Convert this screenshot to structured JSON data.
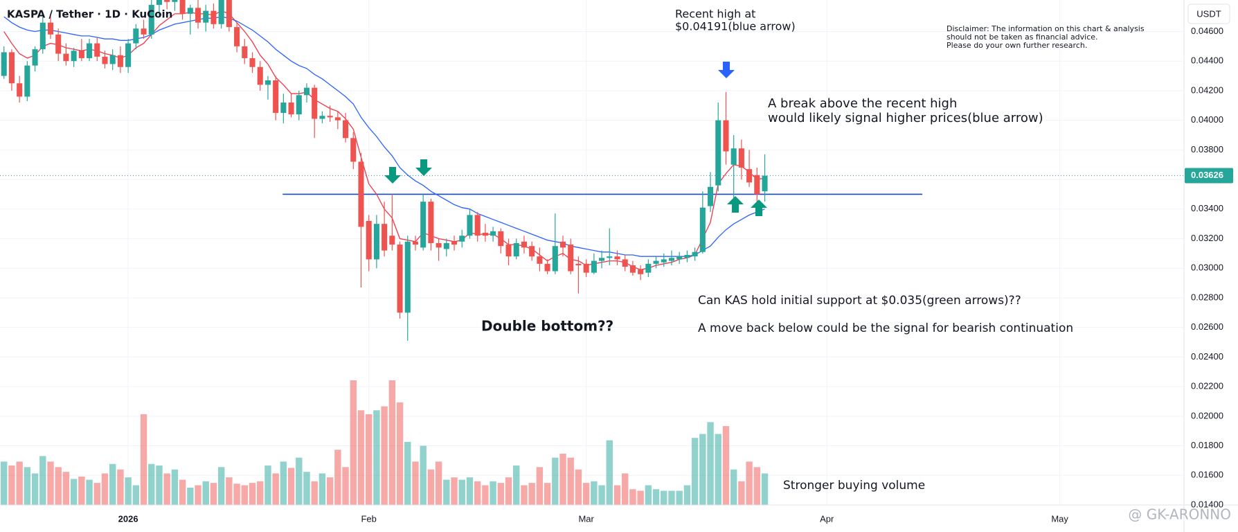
{
  "chart_data": {
    "type": "candlestick",
    "title": "KASPA / Tether · 1D · KuCoin",
    "currency": "USDT",
    "colors": {
      "up": "#26a69a",
      "down": "#ef5350"
    },
    "open": [
      0.043,
      0.0446,
      0.0425,
      0.0416,
      0.0437,
      0.0448,
      0.0466,
      0.0458,
      0.0445,
      0.044,
      0.0447,
      0.0442,
      0.0452,
      0.0443,
      0.0438,
      0.0444,
      0.0436,
      0.0452,
      0.0462,
      0.0458,
      0.0478,
      0.0486,
      0.048,
      0.0488,
      0.0472,
      0.0476,
      0.0466,
      0.0474,
      0.0465,
      0.0484,
      0.0463,
      0.045,
      0.0442,
      0.0436,
      0.0424,
      0.0427,
      0.0405,
      0.0412,
      0.0404,
      0.0417,
      0.0422,
      0.0401,
      0.0403,
      0.0402,
      0.04,
      0.0388,
      0.0372,
      0.0332,
      0.0306,
      0.033,
      0.0322,
      0.0316,
      0.027,
      0.0318,
      0.0314,
      0.0345,
      0.0317,
      0.0313,
      0.0318,
      0.0318,
      0.0322,
      0.0336,
      0.0324,
      0.0322,
      0.0325,
      0.0316,
      0.0308,
      0.0318,
      0.0315,
      0.0308,
      0.0303,
      0.0298,
      0.0318,
      0.0316,
      0.0303,
      0.0303,
      0.0297,
      0.0305,
      0.0307,
      0.0308,
      0.0306,
      0.0302,
      0.0299,
      0.0297,
      0.0303,
      0.0304,
      0.0305,
      0.0306,
      0.0307,
      0.0308,
      0.0311,
      0.0342,
      0.0356,
      0.04,
      0.037,
      0.0381,
      0.0367,
      0.0363,
      0.0352
    ],
    "high": [
      0.045,
      0.0448,
      0.043,
      0.044,
      0.045,
      0.047,
      0.0472,
      0.0462,
      0.0452,
      0.0449,
      0.0455,
      0.0455,
      0.0456,
      0.0447,
      0.0448,
      0.045,
      0.0455,
      0.0465,
      0.0468,
      0.0482,
      0.049,
      0.0495,
      0.0492,
      0.0496,
      0.0478,
      0.0482,
      0.0478,
      0.0479,
      0.0488,
      0.049,
      0.0466,
      0.0455,
      0.0446,
      0.044,
      0.043,
      0.043,
      0.0418,
      0.0418,
      0.042,
      0.0425,
      0.0424,
      0.0406,
      0.041,
      0.0406,
      0.0405,
      0.0392,
      0.0378,
      0.0336,
      0.0336,
      0.0345,
      0.035,
      0.0318,
      0.0322,
      0.0322,
      0.035,
      0.0347,
      0.032,
      0.032,
      0.0322,
      0.0326,
      0.034,
      0.0338,
      0.033,
      0.0328,
      0.0327,
      0.032,
      0.032,
      0.0322,
      0.0318,
      0.0314,
      0.0306,
      0.0337,
      0.0322,
      0.032,
      0.0308,
      0.0306,
      0.031,
      0.0312,
      0.0327,
      0.0312,
      0.0309,
      0.0305,
      0.0302,
      0.0306,
      0.0308,
      0.031,
      0.0312,
      0.0311,
      0.0312,
      0.0314,
      0.0352,
      0.0365,
      0.0412,
      0.04191,
      0.039,
      0.0387,
      0.038,
      0.0368,
      0.0377
    ],
    "low": [
      0.0428,
      0.042,
      0.0412,
      0.0413,
      0.0433,
      0.0445,
      0.0455,
      0.044,
      0.0437,
      0.0436,
      0.044,
      0.044,
      0.044,
      0.0435,
      0.0434,
      0.0432,
      0.0432,
      0.0448,
      0.0455,
      0.0455,
      0.047,
      0.0475,
      0.0474,
      0.0468,
      0.0458,
      0.0462,
      0.046,
      0.0462,
      0.0462,
      0.046,
      0.0446,
      0.0438,
      0.0432,
      0.042,
      0.0414,
      0.04,
      0.0398,
      0.0402,
      0.04,
      0.0412,
      0.0388,
      0.0398,
      0.0399,
      0.0394,
      0.0385,
      0.0367,
      0.0287,
      0.0298,
      0.03,
      0.0308,
      0.0312,
      0.0266,
      0.0251,
      0.0312,
      0.0312,
      0.0312,
      0.0305,
      0.0308,
      0.0312,
      0.0314,
      0.032,
      0.0318,
      0.0318,
      0.0318,
      0.031,
      0.0302,
      0.0306,
      0.031,
      0.0305,
      0.0298,
      0.0296,
      0.0296,
      0.0308,
      0.0296,
      0.0283,
      0.0294,
      0.0296,
      0.03,
      0.0302,
      0.0302,
      0.0298,
      0.0295,
      0.0292,
      0.0294,
      0.03,
      0.0301,
      0.0302,
      0.0303,
      0.0304,
      0.0305,
      0.031,
      0.0338,
      0.0352,
      0.037,
      0.0341,
      0.036,
      0.0355,
      0.0343,
      0.0345
    ],
    "close": [
      0.0446,
      0.0425,
      0.0416,
      0.0437,
      0.0448,
      0.0466,
      0.0458,
      0.0445,
      0.044,
      0.0447,
      0.0442,
      0.0452,
      0.0443,
      0.0438,
      0.0444,
      0.0436,
      0.0452,
      0.0462,
      0.0458,
      0.0478,
      0.0486,
      0.048,
      0.0488,
      0.0472,
      0.0476,
      0.0466,
      0.0474,
      0.0465,
      0.0484,
      0.0463,
      0.045,
      0.0442,
      0.0436,
      0.0424,
      0.0427,
      0.0405,
      0.0412,
      0.0404,
      0.0417,
      0.0422,
      0.0401,
      0.0403,
      0.0402,
      0.04,
      0.0388,
      0.0372,
      0.0328,
      0.0306,
      0.033,
      0.0312,
      0.0316,
      0.027,
      0.0318,
      0.0316,
      0.0345,
      0.0317,
      0.0314,
      0.0317,
      0.0316,
      0.0322,
      0.0336,
      0.0322,
      0.0322,
      0.0325,
      0.0315,
      0.0308,
      0.0317,
      0.0314,
      0.0308,
      0.0303,
      0.0298,
      0.0315,
      0.0314,
      0.0298,
      0.0302,
      0.0297,
      0.0305,
      0.0307,
      0.0308,
      0.0306,
      0.0301,
      0.0297,
      0.0296,
      0.0303,
      0.0305,
      0.0306,
      0.0307,
      0.0308,
      0.0309,
      0.0311,
      0.0341,
      0.0355,
      0.04,
      0.0379,
      0.0381,
      0.0368,
      0.0358,
      0.035,
      0.03626
    ],
    "volume": [
      55,
      50,
      55,
      48,
      40,
      62,
      55,
      48,
      42,
      33,
      36,
      32,
      28,
      40,
      52,
      45,
      35,
      25,
      115,
      52,
      50,
      40,
      45,
      32,
      22,
      25,
      30,
      28,
      48,
      35,
      27,
      25,
      28,
      30,
      50,
      40,
      55,
      47,
      60,
      42,
      30,
      40,
      35,
      70,
      48,
      158,
      120,
      115,
      120,
      125,
      158,
      130,
      80,
      55,
      75,
      45,
      55,
      32,
      35,
      32,
      35,
      30,
      25,
      30,
      28,
      35,
      50,
      25,
      28,
      48,
      28,
      60,
      65,
      60,
      45,
      28,
      30,
      25,
      82,
      25,
      40,
      20,
      18,
      25,
      20,
      18,
      18,
      18,
      25,
      85,
      90,
      105,
      90,
      100,
      45,
      30,
      55,
      48,
      40
    ],
    "ma_lines": [
      {
        "color": "#f23645",
        "values": [
          0.046,
          0.0452,
          0.0445,
          0.0442,
          0.0444,
          0.045,
          0.0452,
          0.0451,
          0.0449,
          0.0448,
          0.0447,
          0.0448,
          0.0447,
          0.0445,
          0.0444,
          0.0442,
          0.0444,
          0.0449,
          0.0452,
          0.0458,
          0.0464,
          0.0468,
          0.0472,
          0.0472,
          0.0473,
          0.0472,
          0.0472,
          0.0471,
          0.0474,
          0.0472,
          0.0466,
          0.046,
          0.0453,
          0.0444,
          0.0438,
          0.0429,
          0.0424,
          0.0418,
          0.0418,
          0.0419,
          0.0414,
          0.0411,
          0.0408,
          0.0406,
          0.0401,
          0.0394,
          0.0375,
          0.0357,
          0.035,
          0.034,
          0.0334,
          0.032,
          0.0319,
          0.0318,
          0.0324,
          0.0322,
          0.032,
          0.0319,
          0.0318,
          0.0319,
          0.0324,
          0.0323,
          0.0323,
          0.0323,
          0.032,
          0.0316,
          0.0316,
          0.0315,
          0.0313,
          0.0309,
          0.0305,
          0.0308,
          0.031,
          0.0306,
          0.0305,
          0.0302,
          0.0303,
          0.0304,
          0.0305,
          0.0305,
          0.0304,
          0.0301,
          0.0299,
          0.03,
          0.0302,
          0.0303,
          0.0304,
          0.0306,
          0.0307,
          0.0309,
          0.032,
          0.0331,
          0.0357,
          0.0364,
          0.037,
          0.0369,
          0.0365,
          0.036,
          0.0361
        ]
      },
      {
        "color": "#2962ff",
        "values": [
          0.047,
          0.0466,
          0.0463,
          0.0461,
          0.046,
          0.0461,
          0.0461,
          0.046,
          0.0459,
          0.0458,
          0.0457,
          0.0457,
          0.0456,
          0.0455,
          0.0455,
          0.0454,
          0.0454,
          0.0455,
          0.0456,
          0.0458,
          0.0461,
          0.0463,
          0.0465,
          0.0466,
          0.0467,
          0.0468,
          0.0469,
          0.0469,
          0.047,
          0.0469,
          0.0467,
          0.0464,
          0.0461,
          0.0457,
          0.0453,
          0.0448,
          0.0444,
          0.044,
          0.0437,
          0.0435,
          0.0431,
          0.0428,
          0.0424,
          0.042,
          0.0416,
          0.0411,
          0.0402,
          0.0395,
          0.0389,
          0.0382,
          0.0376,
          0.0368,
          0.0363,
          0.0359,
          0.0356,
          0.0352,
          0.0349,
          0.0346,
          0.0343,
          0.0341,
          0.034,
          0.0337,
          0.0335,
          0.0333,
          0.0331,
          0.0329,
          0.0327,
          0.0325,
          0.0323,
          0.0321,
          0.0319,
          0.0318,
          0.0317,
          0.0315,
          0.0314,
          0.0313,
          0.0312,
          0.0311,
          0.0311,
          0.031,
          0.0309,
          0.0309,
          0.0308,
          0.0308,
          0.0308,
          0.0308,
          0.0308,
          0.0308,
          0.0308,
          0.0309,
          0.0312,
          0.0315,
          0.0321,
          0.0326,
          0.033,
          0.0333,
          0.0336,
          0.0338,
          0.034
        ]
      }
    ],
    "xlim": [
      -0.51,
      152
    ],
    "xticks": [
      {
        "value": 16,
        "label": "2026"
      },
      {
        "value": 47,
        "label": "Feb"
      },
      {
        "value": 75,
        "label": "Mar"
      },
      {
        "value": 106,
        "label": "Apr"
      },
      {
        "value": 136,
        "label": "May"
      }
    ],
    "ylim": [
      0.014,
      0.04813
    ],
    "yticks": [
      {
        "value": 0.014,
        "label": "0.01400"
      },
      {
        "value": 0.016,
        "label": "0.01600"
      },
      {
        "value": 0.018,
        "label": "0.01800"
      },
      {
        "value": 0.02,
        "label": "0.02000"
      },
      {
        "value": 0.022,
        "label": "0.02200"
      },
      {
        "value": 0.024,
        "label": "0.02400"
      },
      {
        "value": 0.026,
        "label": "0.02600"
      },
      {
        "value": 0.028,
        "label": "0.02800"
      },
      {
        "value": 0.03,
        "label": "0.03000"
      },
      {
        "value": 0.032,
        "label": "0.03200"
      },
      {
        "value": 0.034,
        "label": "0.03400"
      },
      {
        "value": 0.036,
        "label": "0.03600"
      },
      {
        "value": 0.038,
        "label": "0.03800"
      },
      {
        "value": 0.04,
        "label": "0.04000"
      },
      {
        "value": 0.042,
        "label": "0.04200"
      },
      {
        "value": 0.044,
        "label": "0.04400"
      },
      {
        "value": 0.046,
        "label": "0.04600"
      }
    ],
    "grid": true,
    "last_price": {
      "value": 0.03626,
      "label": "0.03626"
    },
    "support_line": {
      "value": 0.035,
      "from": 35.9,
      "to": 118.3,
      "color": "#1848cc"
    },
    "annotations": {
      "recent_high": [
        "Recent high at",
        "$0.04191(blue arrow)"
      ],
      "disclaimer": [
        "Disclaimer: The information on this chart & analysis",
        "should not be taken as financial advice.",
        "Please do your own further research."
      ],
      "breakout": [
        "A break above the recent high",
        "would likely signal higher prices(blue arrow)"
      ],
      "double_bottom": "Double bottom??",
      "support_question": "Can KAS hold initial support at $0.035(green arrows)??",
      "bearish": "A move back below could be the signal for bearish continuation",
      "volume_note": "Stronger buying volume"
    },
    "watermark": "@ GK-ARONNO"
  }
}
